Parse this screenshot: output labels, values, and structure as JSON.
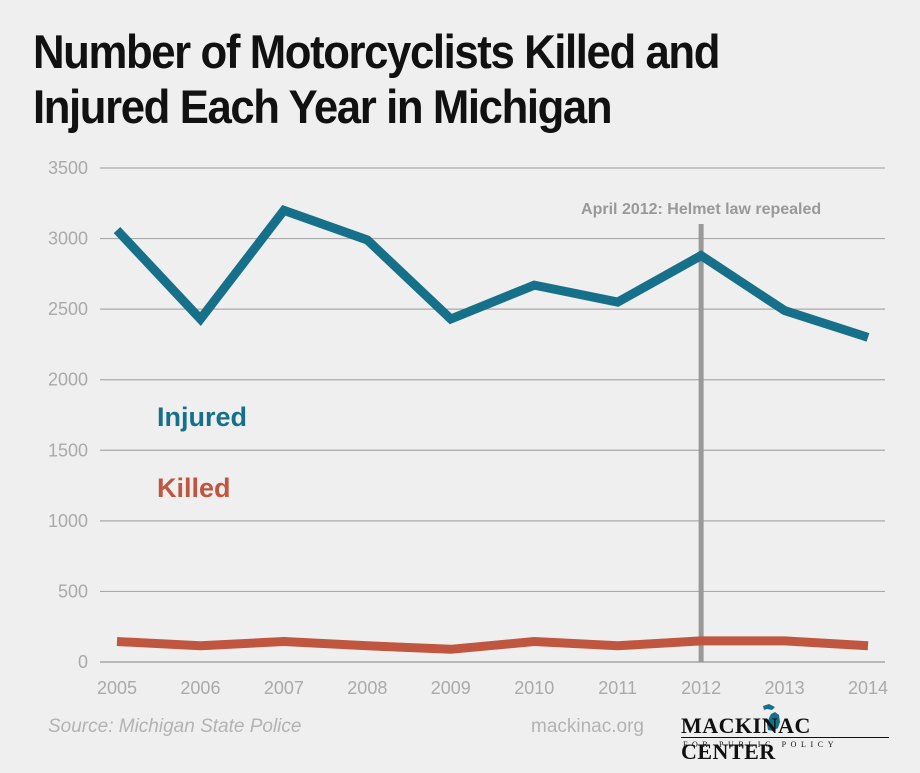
{
  "header": {
    "title_line1": "Number of Motorcyclists Killed and",
    "title_line2": "Injured Each Year in Michigan"
  },
  "chart_data": {
    "type": "line",
    "title": "Number of Motorcyclists Killed and Injured Each Year in Michigan",
    "xlabel": "",
    "ylabel": "",
    "x": [
      "2005",
      "2006",
      "2007",
      "2008",
      "2009",
      "2010",
      "2011",
      "2012",
      "2013",
      "2014"
    ],
    "ylim": [
      0,
      3500
    ],
    "yticks": [
      0,
      500,
      1000,
      1500,
      2000,
      2500,
      3000,
      3500
    ],
    "grid": "horizontal",
    "series": [
      {
        "name": "Injured",
        "color": "#16708a",
        "values": [
          3060,
          2430,
          3200,
          2990,
          2430,
          2670,
          2550,
          2880,
          2490,
          2300
        ]
      },
      {
        "name": "Killed",
        "color": "#c05640",
        "values": [
          145,
          115,
          145,
          115,
          90,
          145,
          115,
          150,
          150,
          115
        ]
      }
    ],
    "annotation": {
      "label": "April 2012: Helmet law repealed",
      "x": "2012",
      "color": "#999999"
    }
  },
  "footer": {
    "source": "Source: Michigan State Police",
    "site": "mackinac.org",
    "logo_name": "MACKINAC CENTER",
    "logo_sub": "FOR PUBLIC POLICY"
  }
}
